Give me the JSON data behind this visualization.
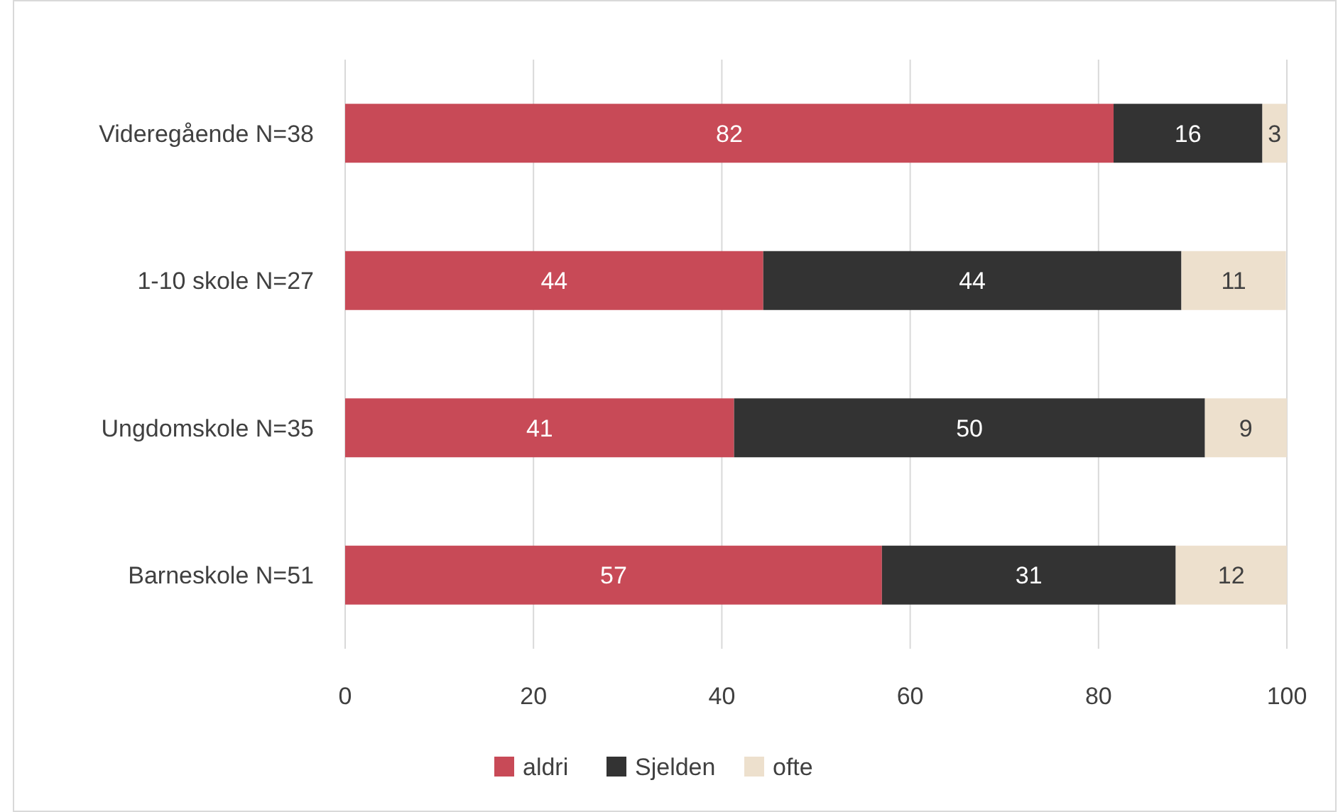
{
  "chart_data": {
    "type": "bar",
    "orientation": "horizontal",
    "stacked": true,
    "categories": [
      "Videregående N=38",
      "1-10 skole N=27",
      "Ungdomskole N=35",
      "Barneskole N=51"
    ],
    "series": [
      {
        "name": "aldri",
        "color": "#c84a57",
        "values": [
          81.6,
          44.4,
          41.3,
          57.0
        ],
        "value_labels": [
          "82",
          "44",
          "41",
          "57"
        ]
      },
      {
        "name": "Sjelden",
        "color": "#333333",
        "values": [
          15.8,
          44.4,
          50.0,
          31.2
        ],
        "value_labels": [
          "16",
          "44",
          "50",
          "31"
        ]
      },
      {
        "name": "ofte",
        "color": "#ede0cd",
        "values": [
          2.6,
          11.1,
          8.7,
          11.8
        ],
        "value_labels": [
          "3",
          "11",
          "9",
          "12"
        ]
      }
    ],
    "xlim": [
      0,
      100
    ],
    "xticks": [
      0,
      20,
      40,
      60,
      80,
      100
    ],
    "grid": "x",
    "legend": "bottom"
  }
}
